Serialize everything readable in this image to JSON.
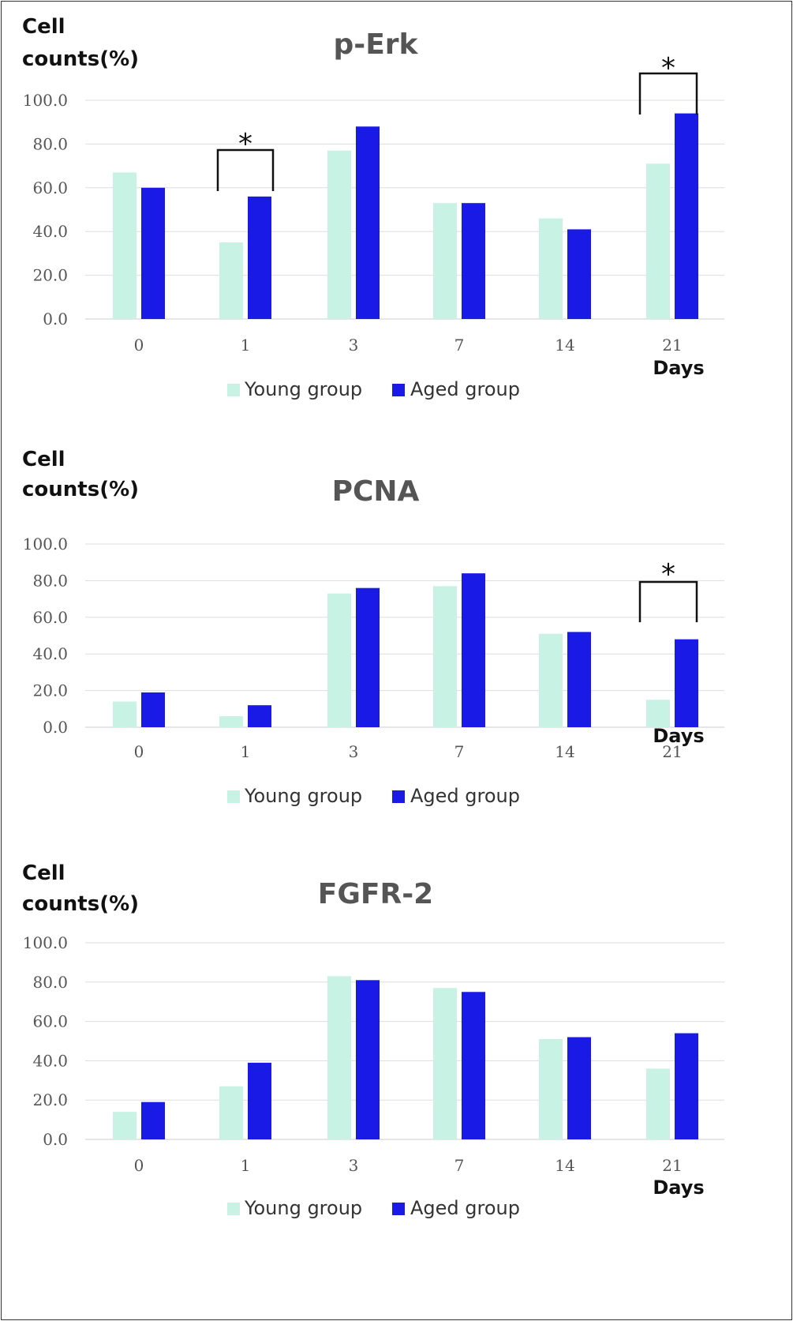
{
  "chart_data": [
    {
      "type": "bar",
      "title": "p-Erk",
      "ylabel": [
        "Cell",
        "counts(%)"
      ],
      "xlabel": "Days",
      "categories": [
        "0",
        "1",
        "3",
        "7",
        "14",
        "21"
      ],
      "yticks": [
        "0.0",
        "20.0",
        "40.0",
        "60.0",
        "80.0",
        "100.0"
      ],
      "ylim": [
        0,
        100
      ],
      "grid": true,
      "legend_position": "bottom",
      "series": [
        {
          "name": "Young group",
          "color": "#c8f2e4",
          "values": [
            67,
            35,
            77,
            53,
            46,
            71
          ]
        },
        {
          "name": "Aged group",
          "color": "#1a1ae6",
          "values": [
            60,
            56,
            88,
            53,
            41,
            94
          ]
        }
      ],
      "significance": [
        {
          "category": "1",
          "label": "*"
        },
        {
          "category": "21",
          "label": "*"
        }
      ]
    },
    {
      "type": "bar",
      "title": "PCNA",
      "ylabel": [
        "Cell",
        "counts(%)"
      ],
      "xlabel": "Days",
      "categories": [
        "0",
        "1",
        "3",
        "7",
        "14",
        "21"
      ],
      "yticks": [
        "0.0",
        "20.0",
        "40.0",
        "60.0",
        "80.0",
        "100.0"
      ],
      "ylim": [
        0,
        100
      ],
      "grid": true,
      "legend_position": "bottom",
      "series": [
        {
          "name": "Young group",
          "color": "#c8f2e4",
          "values": [
            14,
            6,
            73,
            77,
            51,
            15
          ]
        },
        {
          "name": "Aged group",
          "color": "#1a1ae6",
          "values": [
            19,
            12,
            76,
            84,
            52,
            48
          ]
        }
      ],
      "significance": [
        {
          "category": "21",
          "label": "*"
        }
      ]
    },
    {
      "type": "bar",
      "title": "FGFR-2",
      "ylabel": [
        "Cell",
        "counts(%)"
      ],
      "xlabel": "Days",
      "categories": [
        "0",
        "1",
        "3",
        "7",
        "14",
        "21"
      ],
      "yticks": [
        "0.0",
        "20.0",
        "40.0",
        "60.0",
        "80.0",
        "100.0"
      ],
      "ylim": [
        0,
        100
      ],
      "grid": true,
      "legend_position": "bottom",
      "series": [
        {
          "name": "Young group",
          "color": "#c8f2e4",
          "values": [
            14,
            27,
            83,
            77,
            51,
            36
          ]
        },
        {
          "name": "Aged group",
          "color": "#1a1ae6",
          "values": [
            19,
            39,
            81,
            75,
            52,
            54
          ]
        }
      ],
      "significance": []
    }
  ]
}
